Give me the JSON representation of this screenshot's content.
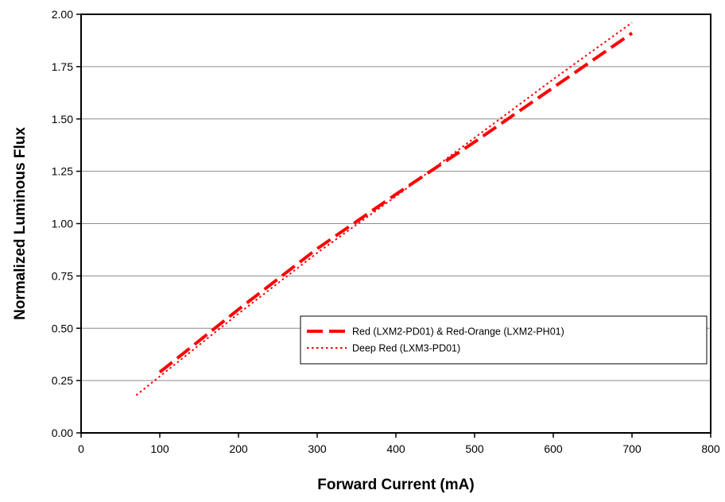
{
  "chart_data": {
    "type": "line",
    "xlabel": "Forward Current (mA)",
    "ylabel": "Normalized Luminous Flux",
    "xlim": [
      0,
      800
    ],
    "ylim": [
      0,
      2
    ],
    "x_ticks": [
      0,
      100,
      200,
      300,
      400,
      500,
      600,
      700,
      800
    ],
    "x_tick_labels": [
      "0",
      "100",
      "200",
      "300",
      "400",
      "500",
      "600",
      "700",
      "800"
    ],
    "y_ticks": [
      0,
      0.25,
      0.5,
      0.75,
      1.0,
      1.25,
      1.5,
      1.75,
      2.0
    ],
    "y_tick_labels": [
      "0.00",
      "0.25",
      "0.50",
      "0.75",
      "1.00",
      "1.25",
      "1.50",
      "1.75",
      "2.00"
    ],
    "grid": "horizontal",
    "legend_position": "lower-right",
    "series": [
      {
        "name": "Red (LXM2-PD01) & Red-Orange (LXM2-PH01)",
        "color": "#ff0000",
        "style": "dashed",
        "x": [
          100,
          200,
          300,
          400,
          500,
          600,
          700
        ],
        "y": [
          0.29,
          0.59,
          0.88,
          1.14,
          1.39,
          1.65,
          1.91
        ]
      },
      {
        "name": "Deep Red (LXM3-PD01)",
        "color": "#ff0000",
        "style": "dotted",
        "x": [
          70,
          100,
          200,
          300,
          400,
          500,
          600,
          700
        ],
        "y": [
          0.18,
          0.27,
          0.57,
          0.86,
          1.13,
          1.41,
          1.69,
          1.96
        ]
      }
    ]
  }
}
